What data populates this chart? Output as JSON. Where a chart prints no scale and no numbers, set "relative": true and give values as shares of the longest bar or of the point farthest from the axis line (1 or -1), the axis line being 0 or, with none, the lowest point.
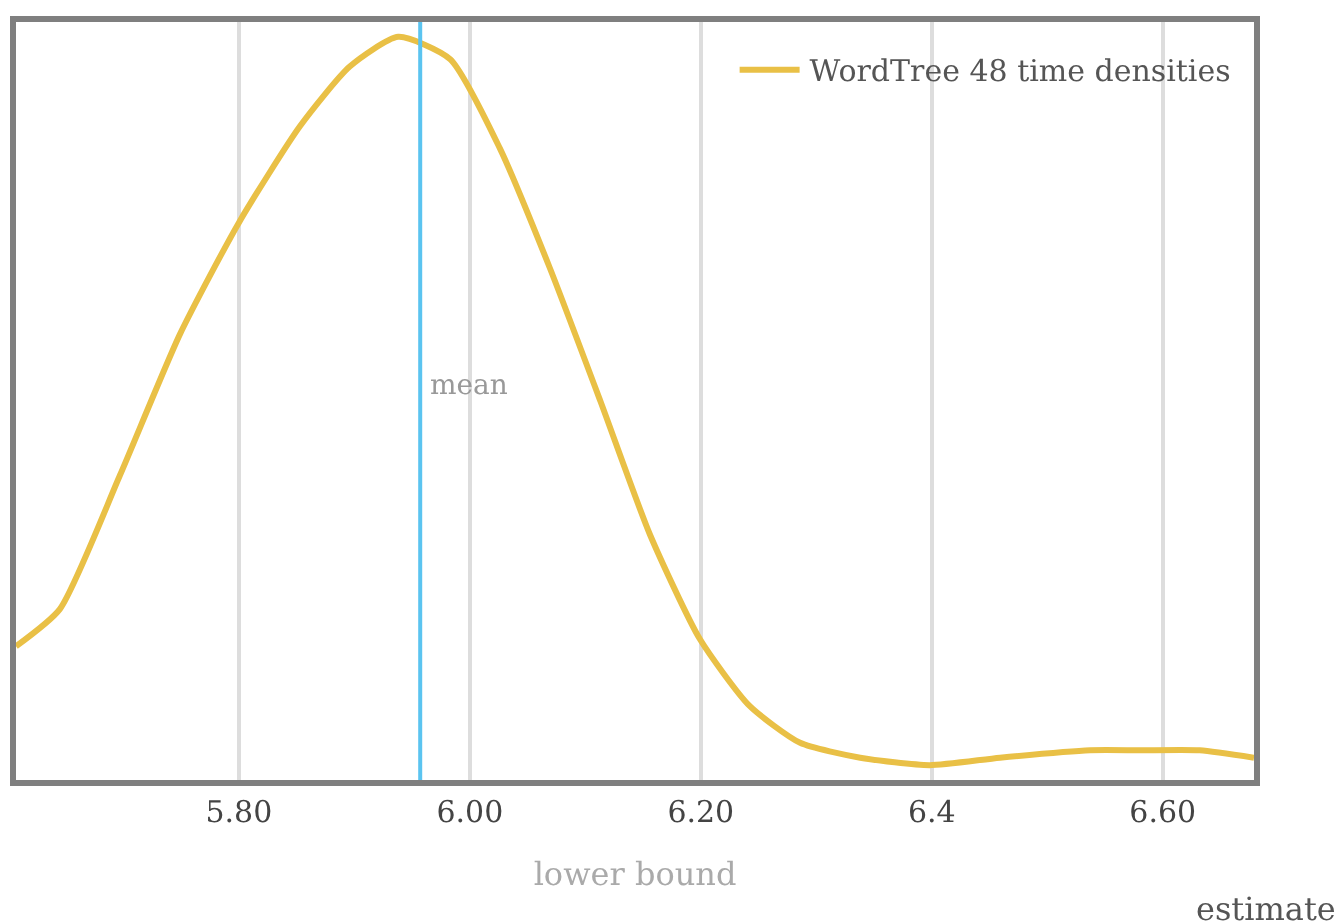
{
  "chart_data": {
    "type": "line",
    "relative": true,
    "xlabel": "lower bound",
    "annotations": [
      "estimate"
    ],
    "x": [
      5.607,
      5.645,
      5.697,
      5.749,
      5.8,
      5.853,
      5.896,
      5.938,
      5.983,
      6.026,
      6.069,
      6.113,
      6.156,
      6.199,
      6.242,
      6.286,
      6.338,
      6.398,
      6.459,
      6.537,
      6.58,
      6.632,
      6.679
    ],
    "series": [
      {
        "name": "WordTree 48 time densities",
        "color": "#e9c046",
        "values": [
          0.18,
          0.23,
          0.41,
          0.6,
          0.75,
          0.88,
          0.96,
          1.0,
          0.97,
          0.85,
          0.69,
          0.51,
          0.33,
          0.19,
          0.1,
          0.05,
          0.03,
          0.02,
          0.03,
          0.04,
          0.04,
          0.04,
          0.03
        ]
      }
    ],
    "xlim": [
      5.607,
      6.679
    ],
    "xticks": [
      {
        "value": 5.8,
        "label": "5.80"
      },
      {
        "value": 6.0,
        "label": "6.00"
      },
      {
        "value": 6.2,
        "label": "6.20"
      },
      {
        "value": 6.4,
        "label": "6.4"
      },
      {
        "value": 6.6,
        "label": "6.60"
      }
    ],
    "ref_lines": [
      {
        "axis": "x",
        "value": 5.957,
        "label": "mean",
        "color": "#5bc4f0"
      }
    ],
    "grid": "x",
    "legend": "top right",
    "marker": "none",
    "line_style": "solid"
  }
}
